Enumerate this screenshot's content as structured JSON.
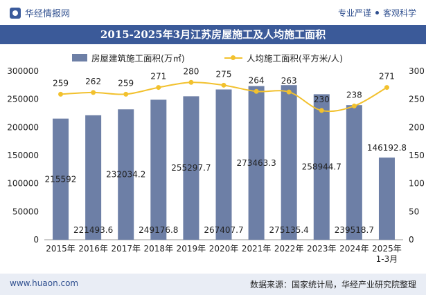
{
  "header": {
    "brand": "华经情报网",
    "slogan_left": "专业严谨",
    "slogan_right": "客观科学"
  },
  "title": "2015-2025年3月江苏房屋施工及人均施工面积",
  "footer": {
    "url": "www.huaon.com",
    "source": "数据来源：国家统计局，华经产业研究院整理"
  },
  "colors": {
    "bar": "#6d7fa6",
    "line": "#f2c12e",
    "title_bg": "#3b5a99"
  },
  "chart_data": {
    "type": "bar",
    "categories": [
      "2015年",
      "2016年",
      "2017年",
      "2018年",
      "2019年",
      "2020年",
      "2021年",
      "2022年",
      "2023年",
      "2024年",
      "2025年\n1-3月"
    ],
    "series": [
      {
        "name": "房屋建筑施工面积(万㎡)",
        "type": "bar",
        "axis": "left",
        "values": [
          215592,
          221493.6,
          232034.2,
          249176.8,
          255297.7,
          267407.7,
          273463.3,
          275135.4,
          258944.7,
          239518.7,
          146192.8
        ],
        "labels": [
          "215592",
          "221493.6",
          "232034.2",
          "249176.8",
          "255297.7",
          "267407.7",
          "273463.3",
          "275135.4",
          "258944.7",
          "239518.7",
          "146192.8"
        ]
      },
      {
        "name": "人均施工面积(平方米/人)",
        "type": "line",
        "axis": "right",
        "values": [
          259,
          262,
          259,
          271,
          280,
          275,
          264,
          263,
          230,
          238,
          271
        ],
        "labels": [
          "259",
          "262",
          "259",
          "271",
          "280",
          "275",
          "264",
          "263",
          "230",
          "238",
          "271"
        ]
      }
    ],
    "y_left": {
      "min": 0,
      "max": 300000,
      "ticks": [
        "0",
        "50000",
        "100000",
        "150000",
        "200000",
        "250000",
        "300000"
      ]
    },
    "y_right": {
      "min": 0,
      "max": 300,
      "ticks": [
        "0",
        "50",
        "100",
        "150",
        "200",
        "250",
        "300"
      ]
    },
    "legend": "top-center",
    "grid": false
  }
}
